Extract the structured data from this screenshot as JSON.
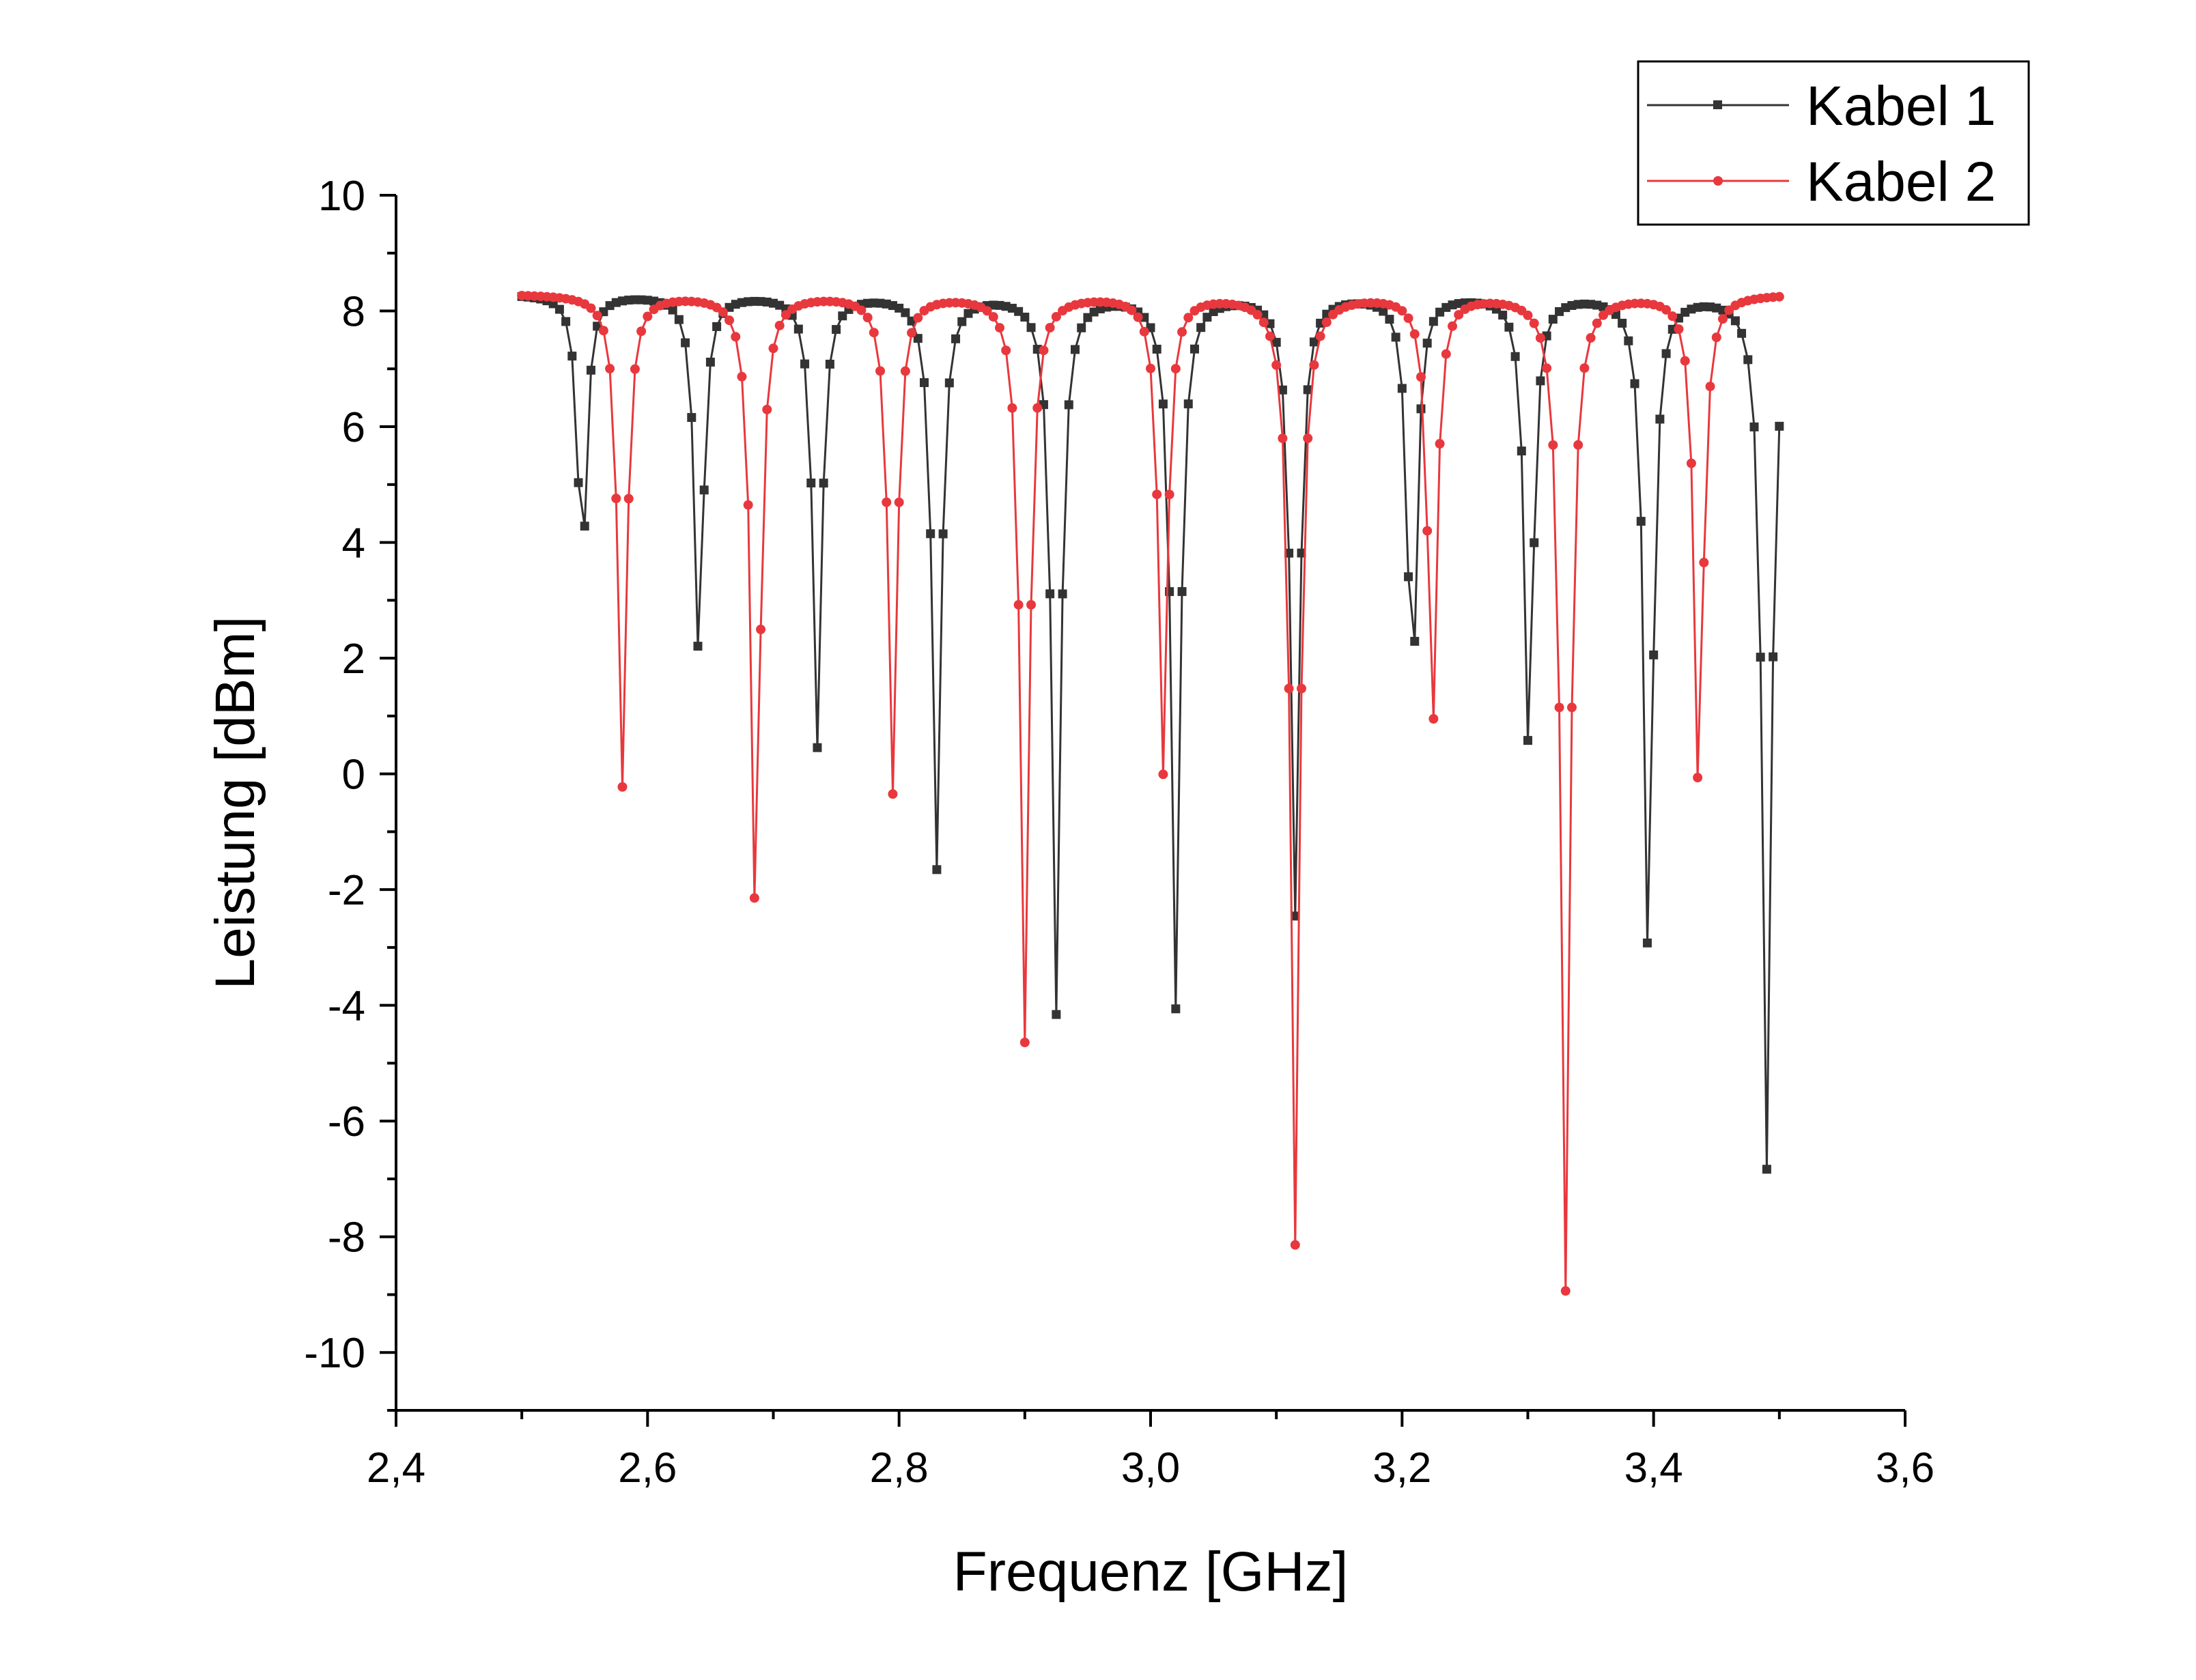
{
  "chart_data": {
    "type": "line",
    "xlabel": "Frequenz [GHz]",
    "ylabel": "Leistung [dBm]",
    "xlim": [
      2.4,
      3.6
    ],
    "ylim": [
      -11,
      10
    ],
    "xticks": [
      "2,4",
      "2,6",
      "2,8",
      "3,0",
      "3,2",
      "3,4",
      "3,6"
    ],
    "xtick_values": [
      2.4,
      2.6,
      2.8,
      3.0,
      3.2,
      3.4,
      3.6
    ],
    "yticks": [
      "10",
      "8",
      "6",
      "4",
      "2",
      "0",
      "-2",
      "-4",
      "-6",
      "-8",
      "-10"
    ],
    "ytick_values": [
      10,
      8,
      6,
      4,
      2,
      0,
      -2,
      -4,
      -6,
      -8,
      -10
    ],
    "legend_position": "top-right",
    "grid": false,
    "x_start": 2.5,
    "x_step": 0.005,
    "series": [
      {
        "name": "Kabel 1",
        "color": "#333333",
        "marker": "square",
        "baseline": 8.3,
        "dips": [
          {
            "x": 2.548,
            "y": 3.4,
            "width": 0.0042
          },
          {
            "x": 2.641,
            "y": 1.9,
            "width": 0.0042
          },
          {
            "x": 2.735,
            "y": 0.5,
            "width": 0.0042
          },
          {
            "x": 2.83,
            "y": -1.6,
            "width": 0.0042
          },
          {
            "x": 2.925,
            "y": -4.1,
            "width": 0.0042
          },
          {
            "x": 3.02,
            "y": -4.0,
            "width": 0.0042
          },
          {
            "x": 3.115,
            "y": -2.4,
            "width": 0.0042
          },
          {
            "x": 3.208,
            "y": 1.0,
            "width": 0.0042
          },
          {
            "x": 3.301,
            "y": 0.2,
            "width": 0.0042
          },
          {
            "x": 3.396,
            "y": -3.5,
            "width": 0.0042
          },
          {
            "x": 3.49,
            "y": -6.8,
            "width": 0.0042
          }
        ]
      },
      {
        "name": "Kabel 2",
        "color": "#e8383d",
        "marker": "circle",
        "baseline": 8.3,
        "dips": [
          {
            "x": 2.58,
            "y": -0.2,
            "width": 0.0042
          },
          {
            "x": 2.686,
            "y": -2.7,
            "width": 0.0042
          },
          {
            "x": 2.795,
            "y": -0.3,
            "width": 0.0042
          },
          {
            "x": 2.9,
            "y": -4.6,
            "width": 0.0042
          },
          {
            "x": 3.01,
            "y": 0.05,
            "width": 0.0042
          },
          {
            "x": 3.115,
            "y": -8.1,
            "width": 0.0042
          },
          {
            "x": 3.224,
            "y": 0.6,
            "width": 0.0042
          },
          {
            "x": 3.33,
            "y": -8.9,
            "width": 0.0042
          },
          {
            "x": 3.436,
            "y": -0.5,
            "width": 0.0042
          }
        ]
      }
    ]
  }
}
